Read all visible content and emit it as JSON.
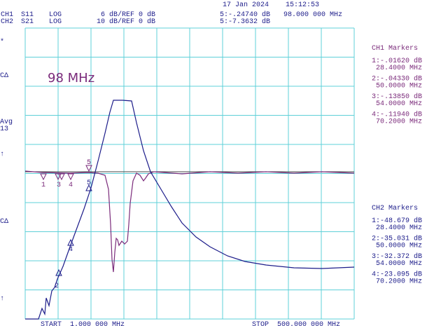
{
  "header": {
    "date": "17 Jan 2024",
    "time": "15:12:53",
    "channels": [
      {
        "ch": "CH1",
        "param": "S11",
        "format": "LOG",
        "scale": "6 dB/REF 0 dB"
      },
      {
        "ch": "CH2",
        "param": "S21",
        "format": "LOG",
        "scale": "10 dB/REF 0 dB"
      }
    ],
    "readout": [
      {
        "value": "5:-.24740 dB",
        "freq": "98.000 000 MHz"
      },
      {
        "value": "5:-7.3632 dB"
      }
    ]
  },
  "left_labels": [
    "*",
    "CΔ",
    "Avg",
    "13",
    "↑",
    "CΔ",
    "↑"
  ],
  "annotation": "98 MHz",
  "ch1_markers": {
    "title": "CH1 Markers",
    "items": [
      {
        "value": "1:-.01620 dB",
        "freq": "28.4000 MHz"
      },
      {
        "value": "2:-.04330 dB",
        "freq": "50.0000 MHz"
      },
      {
        "value": "3:-.13850 dB",
        "freq": "54.0000 MHz"
      },
      {
        "value": "4:-.11940 dB",
        "freq": "70.2000 MHz"
      }
    ]
  },
  "ch2_markers": {
    "title": "CH2 Markers",
    "items": [
      {
        "value": "1:-48.679 dB",
        "freq": "28.4000 MHz"
      },
      {
        "value": "2:-35.031 dB",
        "freq": "50.0000 MHz"
      },
      {
        "value": "3:-32.372 dB",
        "freq": "54.0000 MHz"
      },
      {
        "value": "4:-23.095 dB",
        "freq": "70.2000 MHz"
      }
    ]
  },
  "trace_markers_ch1": [
    "1",
    "3",
    "4",
    "5"
  ],
  "trace_markers_ch2": [
    "2",
    "4",
    "5"
  ],
  "footer": {
    "start": "START  1.000 000 MHz",
    "stop": "STOP  500.000 000 MHz"
  }
}
